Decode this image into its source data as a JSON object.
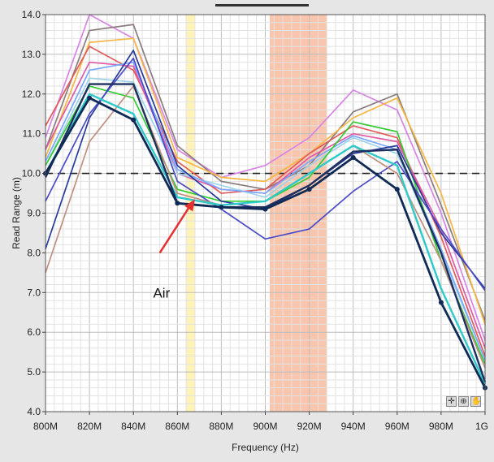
{
  "chart_data": {
    "type": "line",
    "title": "",
    "xlabel": "Frequency (Hz)",
    "ylabel": "Read Range (m)",
    "x": [
      800,
      820,
      840,
      860,
      880,
      900,
      920,
      940,
      960,
      980,
      1000
    ],
    "xticklabels": [
      "800M",
      "820M",
      "840M",
      "860M",
      "880M",
      "900M",
      "920M",
      "940M",
      "960M",
      "980M",
      "1G"
    ],
    "yticklabels": [
      "4.0",
      "5.0",
      "6.0",
      "7.0",
      "8.0",
      "9.0",
      "10.0",
      "11.0",
      "12.0",
      "13.0",
      "14.0"
    ],
    "xlim": [
      800,
      1000
    ],
    "ylim": [
      4.0,
      14.0
    ],
    "grid": true,
    "reference_line": 10.0,
    "bands": [
      {
        "x0": 864,
        "x1": 868,
        "color": "#fff3b8"
      },
      {
        "x0": 902,
        "x1": 928,
        "color": "#f9c6ad"
      }
    ],
    "series": [
      {
        "color": "#d884e6",
        "values": [
          10.9,
          14.0,
          13.4,
          10.6,
          9.9,
          10.2,
          10.9,
          12.1,
          11.6,
          9.0,
          5.8
        ]
      },
      {
        "color": "#8b7d7d",
        "values": [
          10.6,
          13.6,
          13.75,
          10.7,
          9.8,
          9.6,
          10.2,
          11.55,
          12.0,
          9.2,
          6.3
        ]
      },
      {
        "color": "#f5b642",
        "values": [
          10.4,
          13.3,
          13.4,
          10.4,
          9.9,
          9.8,
          10.5,
          11.4,
          11.9,
          9.5,
          6.2
        ]
      },
      {
        "color": "#e25a5a",
        "values": [
          11.2,
          13.2,
          12.6,
          10.3,
          9.5,
          9.6,
          10.5,
          11.2,
          10.9,
          8.4,
          5.4
        ]
      },
      {
        "color": "#e05aa6",
        "values": [
          10.6,
          12.8,
          12.7,
          10.0,
          9.6,
          9.5,
          10.4,
          11.0,
          10.8,
          8.6,
          5.6
        ]
      },
      {
        "color": "#9fd3ea",
        "values": [
          10.2,
          12.4,
          12.3,
          10.0,
          9.7,
          9.4,
          10.2,
          10.9,
          10.5,
          8.0,
          5.3
        ]
      },
      {
        "color": "#7aa8ff",
        "values": [
          10.3,
          12.6,
          12.8,
          10.1,
          9.6,
          9.5,
          10.3,
          10.95,
          10.6,
          8.1,
          5.3
        ]
      },
      {
        "color": "#33cc33",
        "values": [
          10.2,
          12.2,
          11.9,
          9.6,
          9.3,
          9.3,
          9.9,
          11.3,
          11.05,
          7.8,
          5.2
        ]
      },
      {
        "color": "#2a3a9a",
        "values": [
          8.1,
          11.4,
          13.1,
          10.2,
          9.3,
          9.1,
          9.7,
          10.5,
          10.7,
          8.5,
          7.1
        ]
      },
      {
        "color": "#4b4bc8",
        "values": [
          9.3,
          11.5,
          12.9,
          9.8,
          9.1,
          8.35,
          8.6,
          9.55,
          10.3,
          8.6,
          7.05
        ]
      },
      {
        "color": "#c08f7f",
        "values": [
          7.5,
          10.8,
          12.2,
          9.5,
          9.2,
          9.3,
          10.0,
          10.7,
          10.0,
          7.8,
          5.1
        ]
      },
      {
        "color": "#2ec9c9",
        "values": [
          10.0,
          12.0,
          11.5,
          9.4,
          9.2,
          9.3,
          10.0,
          10.7,
          10.2,
          7.1,
          4.7
        ]
      },
      {
        "color": "#1e3060",
        "values": [
          9.9,
          12.25,
          12.25,
          9.25,
          9.15,
          9.15,
          9.7,
          10.55,
          10.6,
          8.0,
          4.75
        ]
      },
      {
        "color": "#0e2a55",
        "values": [
          10.0,
          11.9,
          11.35,
          9.25,
          9.15,
          9.1,
          9.6,
          10.4,
          9.6,
          6.75,
          4.6
        ],
        "markers": true
      }
    ],
    "annotation": {
      "text": "Air",
      "x": 812,
      "y": 7.0,
      "arrow_from": [
        852,
        8.0
      ],
      "arrow_to": [
        868,
        9.35
      ],
      "color": "#e53030"
    }
  },
  "toolbar": {
    "icons": [
      "crosshair-icon",
      "zoom-icon",
      "pan-hand-icon"
    ],
    "glyphs": [
      "✛",
      "⊕",
      "✋"
    ]
  }
}
